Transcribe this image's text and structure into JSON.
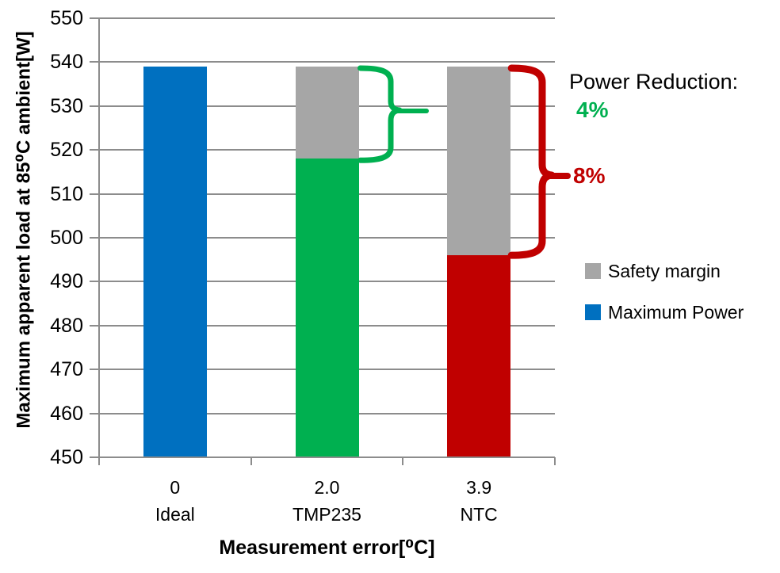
{
  "chart_data": {
    "type": "bar",
    "stacked": true,
    "title": "",
    "ylabel": "Maximum apparent load at 85⁰C ambient[W]",
    "xlabel": "Measurement error[⁰C]",
    "ylim": [
      450,
      550
    ],
    "yticks": [
      450,
      460,
      470,
      480,
      490,
      500,
      510,
      520,
      530,
      540,
      550
    ],
    "grid": true,
    "legend_position": "right",
    "categories": [
      {
        "tick": "0",
        "label": "Ideal"
      },
      {
        "tick": "2.0",
        "label": "TMP235"
      },
      {
        "tick": "3.9",
        "label": "NTC"
      }
    ],
    "series": [
      {
        "name": "Maximum Power",
        "values": [
          539,
          518,
          496
        ],
        "colors": [
          "#0070C0",
          "#00B050",
          "#C00000"
        ]
      },
      {
        "name": "Safety margin",
        "values": [
          0,
          21,
          43
        ],
        "color": "#A6A6A6"
      }
    ]
  },
  "annotations": {
    "title": "Power Reduction:",
    "items": [
      {
        "label": "4%",
        "color": "#00B050"
      },
      {
        "label": "8%",
        "color": "#C00000"
      }
    ]
  },
  "legend": [
    {
      "label": "Safety margin",
      "color": "#A6A6A6"
    },
    {
      "label": "Maximum Power",
      "color": "#0070C0"
    }
  ],
  "colors": {
    "axis": "#8C8C8C",
    "grid": "#8C8C8C",
    "text": "#000000",
    "background": "#FFFFFF"
  }
}
